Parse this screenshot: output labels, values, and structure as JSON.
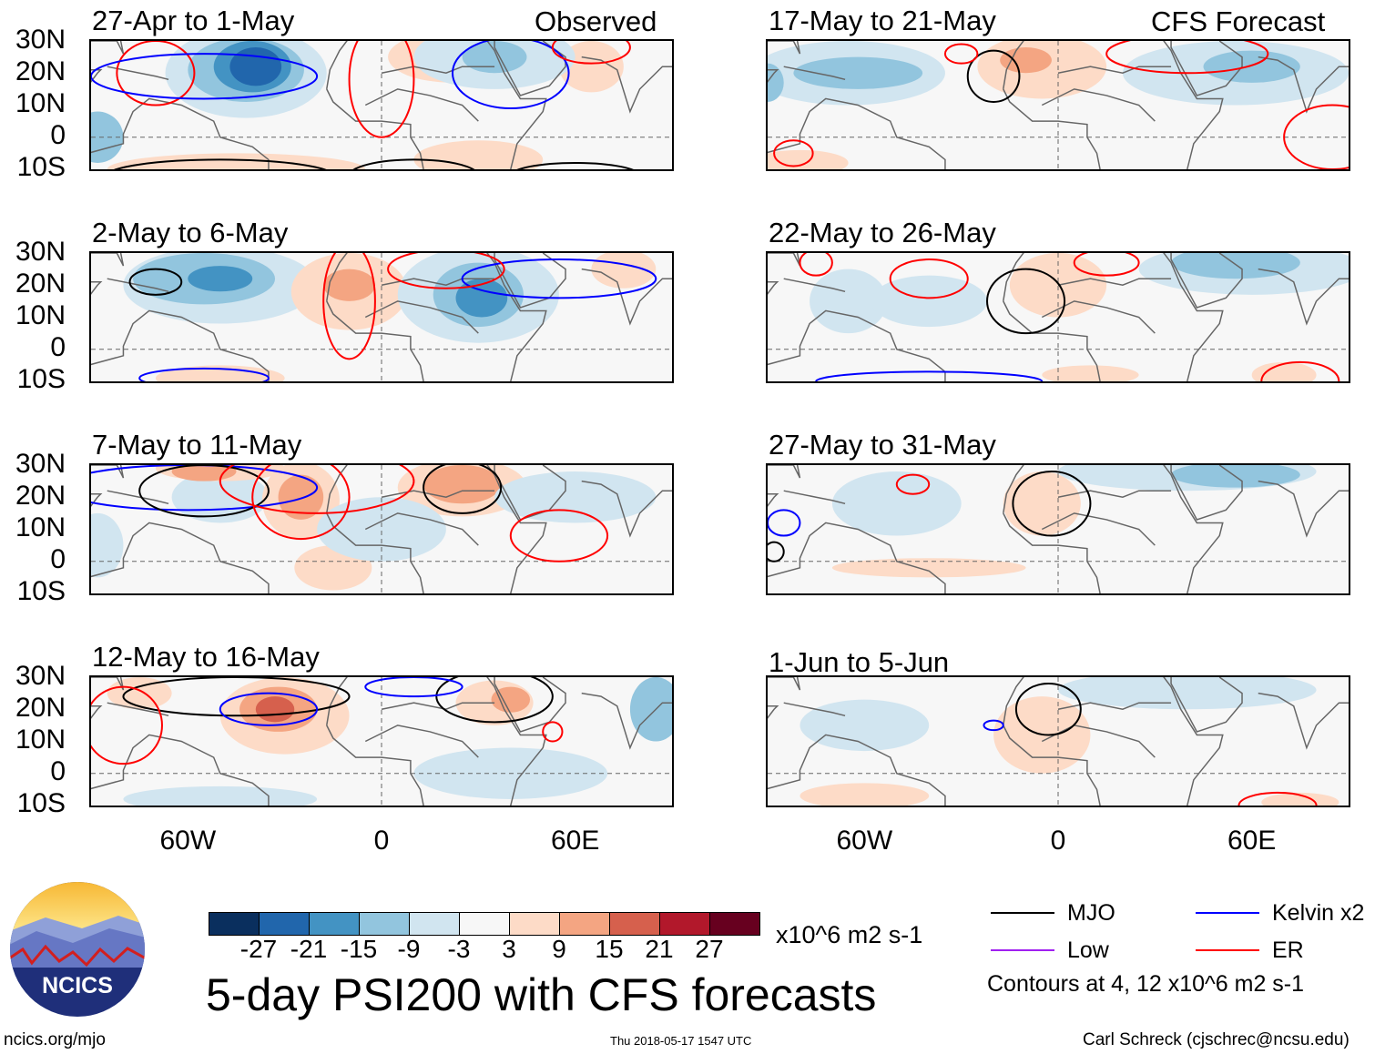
{
  "headers": {
    "observed": "Observed",
    "forecast": "CFS Forecast"
  },
  "lat_labels": [
    "30N",
    "20N",
    "10N",
    "0",
    "10S"
  ],
  "lon_labels": [
    "60W",
    "0",
    "60E"
  ],
  "panels": [
    {
      "title": "27-Apr to 1-May",
      "col": 0,
      "row": 0,
      "blobs": [
        [
          -42,
          20,
          25,
          14,
          -1
        ],
        [
          -42,
          21,
          18,
          10,
          -2
        ],
        [
          -40,
          22,
          12,
          8,
          -3
        ],
        [
          -39,
          22,
          8,
          6,
          -4
        ],
        [
          -88,
          0,
          8,
          8,
          -2
        ],
        [
          22,
          25,
          20,
          8,
          1
        ],
        [
          65,
          22,
          10,
          8,
          1
        ],
        [
          30,
          -7,
          20,
          6,
          1
        ],
        [
          -45,
          -10,
          40,
          5,
          1
        ],
        [
          35,
          25,
          25,
          10,
          -1
        ],
        [
          35,
          25,
          10,
          5,
          -2
        ]
      ],
      "contours": [
        [
          "ER",
          -70,
          20,
          12,
          10
        ],
        [
          "Kelvin",
          -55,
          19,
          35,
          7
        ],
        [
          "ER",
          0,
          18,
          10,
          18
        ],
        [
          "Kelvin",
          40,
          20,
          18,
          11
        ],
        [
          "ER",
          65,
          28,
          12,
          5
        ],
        [
          "MJO",
          -50,
          -12,
          35,
          5
        ],
        [
          "MJO",
          60,
          -12,
          20,
          4
        ],
        [
          "MJO",
          10,
          -12,
          20,
          5
        ]
      ]
    },
    {
      "title": "2-May to 6-May",
      "col": 0,
      "row": 1,
      "blobs": [
        [
          -50,
          20,
          30,
          12,
          -1
        ],
        [
          -55,
          22,
          22,
          8,
          -2
        ],
        [
          -50,
          22,
          10,
          4,
          -3
        ],
        [
          -10,
          18,
          18,
          12,
          1
        ],
        [
          -10,
          20,
          8,
          5,
          2
        ],
        [
          30,
          17,
          25,
          15,
          -1
        ],
        [
          30,
          17,
          14,
          10,
          -2
        ],
        [
          31,
          16,
          8,
          6,
          -3
        ],
        [
          75,
          25,
          10,
          6,
          1
        ],
        [
          -50,
          -9,
          20,
          4,
          1
        ]
      ],
      "contours": [
        [
          "MJO",
          -70,
          21,
          8,
          4
        ],
        [
          "ER",
          -10,
          15,
          8,
          18
        ],
        [
          "Kelvin",
          55,
          22,
          30,
          6
        ],
        [
          "ER",
          20,
          25,
          18,
          6
        ],
        [
          "Kelvin",
          -55,
          -9,
          20,
          3
        ]
      ]
    },
    {
      "title": "7-May to 11-May",
      "col": 0,
      "row": 2,
      "blobs": [
        [
          -50,
          20,
          15,
          8,
          -1
        ],
        [
          -25,
          19,
          12,
          12,
          1
        ],
        [
          -25,
          20,
          7,
          7,
          2
        ],
        [
          25,
          23,
          20,
          9,
          1
        ],
        [
          25,
          24,
          12,
          6,
          2
        ],
        [
          -50,
          29,
          20,
          4,
          1
        ],
        [
          -55,
          28,
          10,
          3,
          2
        ],
        [
          -15,
          -2,
          12,
          7,
          1
        ],
        [
          60,
          20,
          25,
          8,
          -1
        ],
        [
          0,
          10,
          20,
          10,
          -1
        ],
        [
          -88,
          5,
          8,
          10,
          -1
        ]
      ],
      "contours": [
        [
          "Kelvin",
          -60,
          23,
          40,
          7
        ],
        [
          "MJO",
          -55,
          22,
          20,
          8
        ],
        [
          "ER",
          -25,
          20,
          15,
          13
        ],
        [
          "MJO",
          25,
          23,
          12,
          8
        ],
        [
          "ER",
          55,
          8,
          15,
          8
        ],
        [
          "ER",
          -20,
          25,
          30,
          10
        ]
      ]
    },
    {
      "title": "12-May to 16-May",
      "col": 0,
      "row": 3,
      "blobs": [
        [
          -30,
          18,
          20,
          12,
          1
        ],
        [
          -32,
          20,
          12,
          7,
          2
        ],
        [
          -33,
          20,
          6,
          4,
          3
        ],
        [
          35,
          22,
          12,
          7,
          1
        ],
        [
          40,
          23,
          6,
          4,
          2
        ],
        [
          85,
          20,
          8,
          10,
          -2
        ],
        [
          40,
          0,
          30,
          8,
          -1
        ],
        [
          -50,
          -8,
          30,
          4,
          -1
        ],
        [
          -75,
          25,
          10,
          5,
          1
        ]
      ],
      "contours": [
        [
          "MJO",
          -45,
          24,
          35,
          6
        ],
        [
          "Kelvin",
          -35,
          20,
          15,
          5
        ],
        [
          "ER",
          -80,
          15,
          12,
          12
        ],
        [
          "MJO",
          35,
          24,
          18,
          8
        ],
        [
          "Kelvin",
          10,
          27,
          15,
          3
        ],
        [
          "ER",
          53,
          13,
          3,
          3
        ]
      ]
    },
    {
      "title": "17-May to 21-May",
      "col": 1,
      "row": 0,
      "blobs": [
        [
          -65,
          20,
          30,
          10,
          -1
        ],
        [
          -62,
          20,
          20,
          5,
          -2
        ],
        [
          -5,
          22,
          20,
          10,
          1
        ],
        [
          -10,
          24,
          8,
          4,
          2
        ],
        [
          55,
          20,
          35,
          10,
          -1
        ],
        [
          60,
          22,
          15,
          5,
          -2
        ],
        [
          -90,
          17,
          5,
          6,
          -2
        ],
        [
          -80,
          -8,
          15,
          4,
          1
        ]
      ],
      "contours": [
        [
          "MJO",
          -20,
          19,
          8,
          8
        ],
        [
          "ER",
          -30,
          26,
          5,
          3
        ],
        [
          "ER",
          40,
          26,
          25,
          6
        ],
        [
          "ER",
          85,
          0,
          15,
          10
        ],
        [
          "ER",
          -82,
          -5,
          6,
          4
        ]
      ]
    },
    {
      "title": "22-May to 26-May",
      "col": 1,
      "row": 1,
      "blobs": [
        [
          60,
          25,
          35,
          8,
          -1
        ],
        [
          55,
          27,
          20,
          5,
          -2
        ],
        [
          0,
          20,
          15,
          10,
          1
        ],
        [
          -65,
          15,
          12,
          10,
          -1
        ],
        [
          -40,
          15,
          18,
          8,
          -1
        ],
        [
          70,
          -8,
          10,
          4,
          1
        ],
        [
          10,
          -8,
          15,
          3,
          1
        ]
      ],
      "contours": [
        [
          "MJO",
          -10,
          15,
          12,
          10
        ],
        [
          "ER",
          -40,
          22,
          12,
          6
        ],
        [
          "ER",
          15,
          27,
          10,
          4
        ],
        [
          "ER",
          75,
          -10,
          12,
          6
        ],
        [
          "Kelvin",
          -40,
          -10,
          35,
          3
        ],
        [
          "ER",
          -75,
          27,
          5,
          4
        ]
      ]
    },
    {
      "title": "27-May to 31-May",
      "col": 1,
      "row": 2,
      "blobs": [
        [
          40,
          28,
          40,
          6,
          -1
        ],
        [
          55,
          27,
          20,
          4,
          -2
        ],
        [
          -5,
          18,
          12,
          10,
          1
        ],
        [
          -50,
          18,
          20,
          10,
          -1
        ],
        [
          -40,
          -2,
          30,
          3,
          1
        ]
      ],
      "contours": [
        [
          "MJO",
          -2,
          18,
          12,
          10
        ],
        [
          "ER",
          -45,
          24,
          5,
          3
        ],
        [
          "Kelvin",
          -85,
          12,
          5,
          4
        ],
        [
          "MJO",
          -88,
          3,
          3,
          3
        ]
      ]
    },
    {
      "title": "1-Jun to 5-Jun",
      "col": 1,
      "row": 3,
      "blobs": [
        [
          40,
          26,
          40,
          6,
          -1
        ],
        [
          -5,
          12,
          15,
          12,
          1
        ],
        [
          -60,
          15,
          20,
          8,
          -1
        ],
        [
          -60,
          -7,
          20,
          4,
          1
        ],
        [
          75,
          -9,
          12,
          3,
          1
        ]
      ],
      "contours": [
        [
          "MJO",
          -3,
          20,
          10,
          8
        ],
        [
          "Kelvin",
          -20,
          15,
          3,
          1.5
        ],
        [
          "ER",
          68,
          -10,
          12,
          4
        ]
      ]
    }
  ],
  "colorbar": {
    "colors": [
      "#0a2f5e",
      "#2166ac",
      "#4393c3",
      "#92c5de",
      "#d1e5f0",
      "#f7f7f7",
      "#fddbc7",
      "#f4a582",
      "#d6604d",
      "#b2182b",
      "#67001f"
    ],
    "labels": [
      "-27",
      "-21",
      "-15",
      "-9",
      "-3",
      "3",
      "9",
      "15",
      "21",
      "27"
    ],
    "units": "x10^6 m2 s-1"
  },
  "legend": {
    "items": [
      {
        "label": "MJO",
        "color": "#000000"
      },
      {
        "label": "Kelvin x2",
        "color": "#0000ff"
      },
      {
        "label": "Low",
        "color": "#a020f0"
      },
      {
        "label": "ER",
        "color": "#ff0000"
      }
    ],
    "note": "Contours at 4, 12 x10^6 m2 s-1"
  },
  "title": "5-day PSI200 with CFS forecasts",
  "logo_text": "NCICS",
  "footer": {
    "url": "ncics.org/mjo",
    "timestamp": "Thu 2018-05-17 1547 UTC",
    "author": "Carl Schreck (cjschrec@ncsu.edu)"
  }
}
